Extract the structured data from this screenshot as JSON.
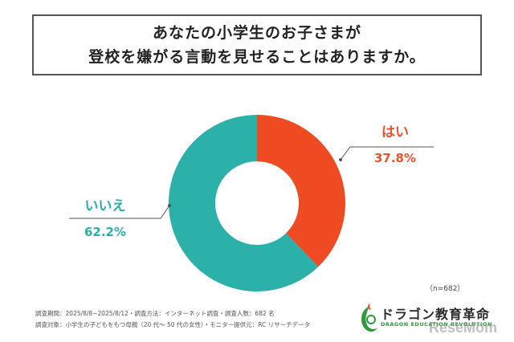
{
  "title_lines": [
    "あなたの小学生のお子さまが",
    "登校を嫌がる言動を見せることはありますか。"
  ],
  "chart_data": {
    "type": "pie",
    "donut": true,
    "slices": [
      {
        "label": "はい",
        "value": 37.8,
        "value_label": "37.8%",
        "color": "#ee4b23"
      },
      {
        "label": "いいえ",
        "value": 62.2,
        "value_label": "62.2%",
        "color": "#2cb0aa"
      }
    ],
    "n_note": "（n=682）"
  },
  "footer": {
    "line1": "調査期間：2025/8/8~2025/8/12・調査方法：インターネット調査・調査人数：682 名",
    "line2": "調査対象：小学生の子どもをもつ母親（20 代～ 50 代の女性）・モニター提供元：RC リサーチデータ"
  },
  "logo": {
    "name": "ドラゴン教育革命",
    "subtitle": "DRAGON EDUCATION REVOLUTION"
  },
  "watermark": "ReseMom",
  "colors": {
    "yes": "#ee4b23",
    "no": "#2cb0aa",
    "leader": "#555555"
  }
}
